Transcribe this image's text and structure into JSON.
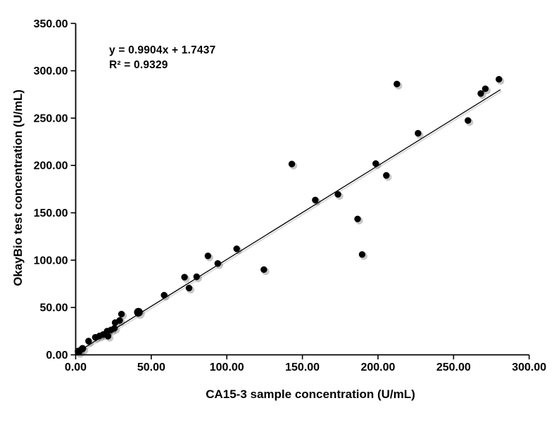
{
  "chart_data": {
    "type": "scatter",
    "title": "",
    "xlabel": "CA15-3  sample concentration (U/mL)",
    "ylabel": "OkayBio test concentration (U/mL)",
    "xlim": [
      0,
      300
    ],
    "ylim": [
      0,
      350
    ],
    "grid": false,
    "legend": "none",
    "marker": {
      "shape": "circle",
      "color": "#000000",
      "shadow": true
    },
    "axis_color": "#000000",
    "x_ticks": [
      {
        "value": 0,
        "label": "0.00"
      },
      {
        "value": 50,
        "label": "50.00"
      },
      {
        "value": 100,
        "label": "100.00"
      },
      {
        "value": 150,
        "label": "150.00"
      },
      {
        "value": 200,
        "label": "200.00"
      },
      {
        "value": 250,
        "label": "250.00"
      },
      {
        "value": 300,
        "label": "300.00"
      }
    ],
    "y_ticks": [
      {
        "value": 0,
        "label": "0.00"
      },
      {
        "value": 50,
        "label": "50.00"
      },
      {
        "value": 100,
        "label": "100.00"
      },
      {
        "value": 150,
        "label": "150.00"
      },
      {
        "value": 200,
        "label": "200.00"
      },
      {
        "value": 250,
        "label": "250.00"
      },
      {
        "value": 300,
        "label": "300.00"
      },
      {
        "value": 350,
        "label": "350.00"
      }
    ],
    "points": [
      [
        2,
        3.5,
        5.6
      ],
      [
        4.5,
        6.5,
        5.2
      ],
      [
        8.5,
        14.5
      ],
      [
        13,
        18.5
      ],
      [
        15.8,
        20
      ],
      [
        18.2,
        21.5
      ],
      [
        21.4,
        19.7
      ],
      [
        20.8,
        25
      ],
      [
        23.3,
        26.2
      ],
      [
        25.6,
        28
      ],
      [
        26.1,
        34
      ],
      [
        29.1,
        36.3
      ],
      [
        30.3,
        43
      ],
      [
        41.5,
        45,
        6.2
      ],
      [
        58.5,
        63
      ],
      [
        72,
        82
      ],
      [
        75,
        70.5
      ],
      [
        80,
        82.5
      ],
      [
        87.5,
        104.5
      ],
      [
        94,
        96.5
      ],
      [
        106.5,
        112
      ],
      [
        124.5,
        90
      ],
      [
        143,
        201.5
      ],
      [
        158.5,
        163.5
      ],
      [
        173.5,
        169.5
      ],
      [
        186.5,
        143.5
      ],
      [
        189.5,
        106
      ],
      [
        198.5,
        202
      ],
      [
        205.5,
        189.5
      ],
      [
        212.5,
        286
      ],
      [
        226.5,
        234
      ],
      [
        259.5,
        247.5
      ],
      [
        268,
        276
      ],
      [
        271,
        281
      ],
      [
        280,
        291
      ]
    ],
    "trendline": {
      "slope": 0.9904,
      "intercept": 1.7437,
      "x_start": 0.5,
      "x_end": 281,
      "color": "#000000"
    },
    "annotation": {
      "equation": "y = 0.9904x + 1.7437",
      "r_squared": "R² = 0.9329"
    }
  }
}
